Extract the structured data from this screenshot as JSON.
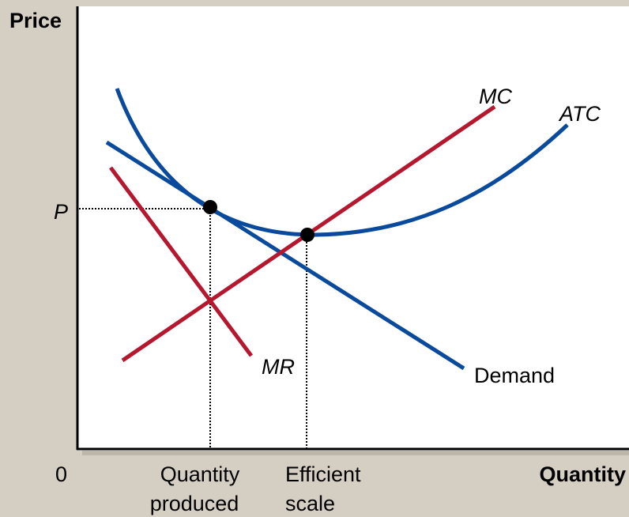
{
  "axes": {
    "y_label": "Price",
    "x_label": "Quantity",
    "origin": "0",
    "price_label": "P"
  },
  "curves": {
    "mc": "MC",
    "atc": "ATC",
    "mr": "MR",
    "demand": "Demand"
  },
  "x_marks": {
    "quantity_produced": [
      "Quantity",
      "produced"
    ],
    "efficient_scale": [
      "Efficient",
      "scale"
    ]
  }
}
